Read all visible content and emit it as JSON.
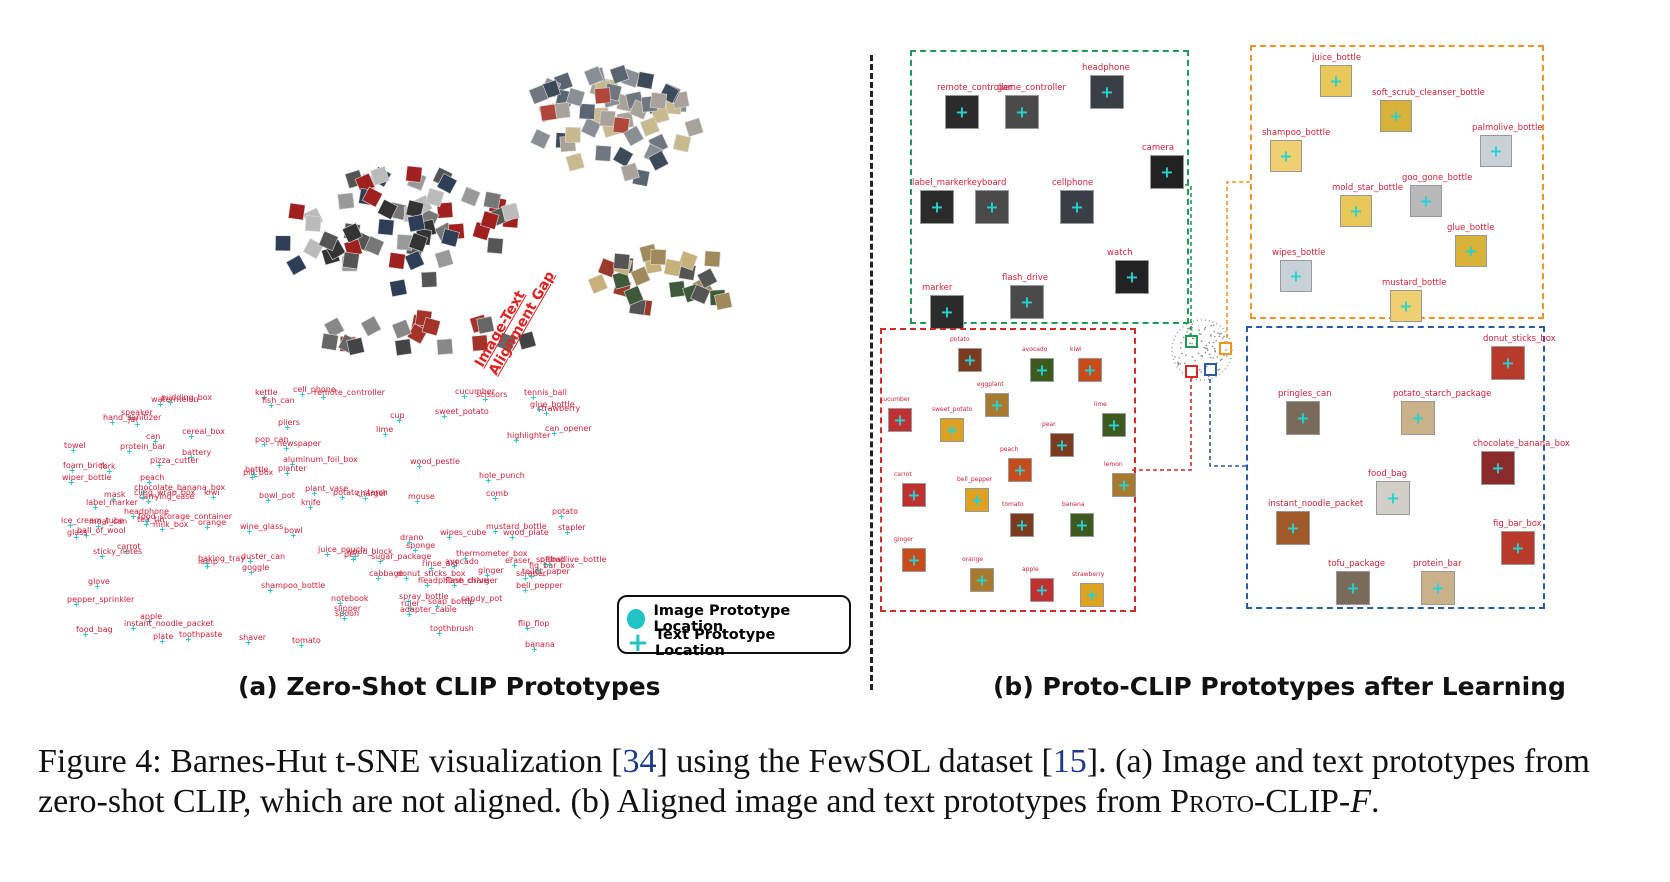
{
  "panel_a": {
    "title": "(a) Zero-Shot CLIP Prototypes",
    "gap_label_line1": "Image-Text",
    "gap_label_line2": "Alignment Gap",
    "legend": {
      "image_label": "Image Prototype Location",
      "text_label": "Text Prototype Location",
      "marker_color": "#20c4c4"
    },
    "words": [
      "pepper_sprinkler",
      "bell_pepper",
      "strawberry",
      "watermelon",
      "potato",
      "orange",
      "ginger",
      "cucumber",
      "carrot",
      "sweet_potato",
      "kiwi",
      "avocado",
      "lime",
      "banana",
      "cabbage",
      "apple",
      "peach",
      "mouse",
      "tomato",
      "bowl",
      "cup",
      "can",
      "hole_punch",
      "stapler",
      "headphone",
      "remote_controller",
      "notebook",
      "newspaper",
      "sticky_notes",
      "pliers",
      "scissors",
      "scraper",
      "eraser",
      "ruler",
      "lamp",
      "cell_phone",
      "speaker",
      "meal_can",
      "protein_bar",
      "duster_can",
      "battery",
      "headphone_charger",
      "adapter_cable",
      "pizza_cutter",
      "potato_starch",
      "charger",
      "spoon",
      "comb",
      "shaver",
      "toothbrush",
      "toothpaste",
      "toilet_paper",
      "pen",
      "highlighter",
      "knife",
      "flash_drive",
      "sponge",
      "foam_brick",
      "wipes_cube",
      "ball_of_wool",
      "tennis_ball",
      "softball",
      "slipper",
      "flip_flop",
      "glove",
      "goggle",
      "mask",
      "fork",
      "bottle",
      "kettle",
      "bowl_pot",
      "candy_pot",
      "label_marker",
      "wood_block",
      "jar",
      "fish_can",
      "baking_tray",
      "plate",
      "wood_plate",
      "carrying_case",
      "wood_pestle",
      "planter",
      "pop_can",
      "towel",
      "sugar_package",
      "food_bag",
      "hand_sanitizer",
      "rinse_aid",
      "drano",
      "glue_bottle",
      "cereal_box",
      "pill_box",
      "pudding_box",
      "tea_tin",
      "can_opener",
      "juice_pouch",
      "instant_noodle_packet",
      "donut_sticks_box",
      "fig_bar_box",
      "chocolate_banana_box",
      "aluminum_foil_box",
      "cling_wrap_box",
      "thermometer_box",
      "spray_bottle",
      "mustard_bottle",
      "wiper_bottle",
      "palmolive_bottle",
      "soap_bottle",
      "shampoo_bottle",
      "wine_glass",
      "glass",
      "ice_cream_tube",
      "plant_vase",
      "food_storage_container",
      "milk_box"
    ]
  },
  "panel_b": {
    "title": "(b) Proto-CLIP Prototypes after Learning",
    "groups": {
      "green": {
        "color": "#1f9a57",
        "items": [
          "remote_controller",
          "game_controller",
          "headphone",
          "camera",
          "label_marker",
          "keyboard",
          "cellphone",
          "watch",
          "marker",
          "flash_drive"
        ]
      },
      "orange": {
        "color": "#f29424",
        "items": [
          "juice_bottle",
          "soft_scrub_cleanser_bottle",
          "palmolive_bottle",
          "shampoo_bottle",
          "goo_gone_bottle",
          "mold_star_bottle",
          "glue_bottle",
          "wipes_bottle",
          "mustard_bottle"
        ]
      },
      "red": {
        "color": "#d42a2a",
        "items": [
          "potato",
          "avocado",
          "kiwi",
          "eggplant",
          "cucumber",
          "sweet_potato",
          "pear",
          "lime",
          "peach",
          "lemon",
          "carrot",
          "bell_pepper",
          "tomato",
          "banana",
          "ginger",
          "orange",
          "apple",
          "strawberry"
        ]
      },
      "blue": {
        "color": "#2a5aa8",
        "items": [
          "donut_sticks_box",
          "pringles_can",
          "potato_starch_package",
          "chocolate_banana_box",
          "food_bag",
          "instant_noodle_packet",
          "fig_bar_box",
          "tofu_package",
          "protein_bar"
        ]
      }
    }
  },
  "caption": {
    "prefix": "Figure 4: Barnes-Hut t-SNE visualization [",
    "ref1": "34",
    "mid1": "] using the FewSOL dataset [",
    "ref2": "15",
    "mid2": "]. (a) Image and text prototypes from zero-shot CLIP, which are not aligned. (b) Aligned image and text prototypes from ",
    "method": "Proto-CLIP-",
    "method_suffix": "F",
    "end": "."
  }
}
